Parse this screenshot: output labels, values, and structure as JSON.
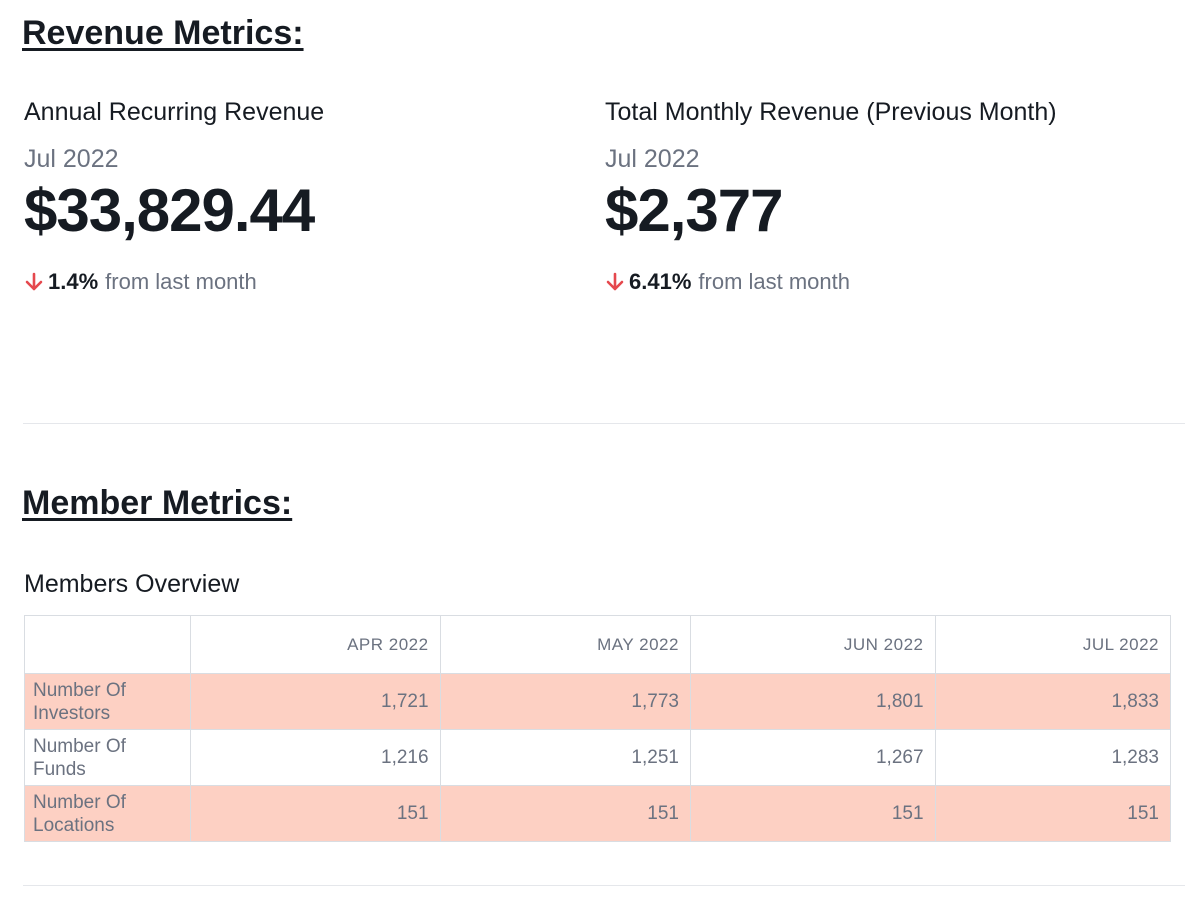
{
  "revenue": {
    "heading": "Revenue Metrics:",
    "metrics": [
      {
        "title": "Annual Recurring Revenue",
        "period": "Jul 2022",
        "value": "$33,829.44",
        "change": "1.4%",
        "change_suffix": "from last month",
        "direction": "down",
        "arrow_color": "#e5484d"
      },
      {
        "title": "Total Monthly Revenue (Previous Month)",
        "period": "Jul 2022",
        "value": "$2,377",
        "change": "6.41%",
        "change_suffix": "from last month",
        "direction": "down",
        "arrow_color": "#e5484d"
      }
    ]
  },
  "members": {
    "heading": "Member Metrics:",
    "table_title": "Members Overview",
    "columns": [
      "APR 2022",
      "MAY 2022",
      "JUN 2022",
      "JUL 2022"
    ],
    "rows": [
      {
        "label": "Number Of Investors",
        "values": [
          "1,721",
          "1,773",
          "1,801",
          "1,833"
        ],
        "highlighted": true
      },
      {
        "label": "Number Of Funds",
        "values": [
          "1,216",
          "1,251",
          "1,267",
          "1,283"
        ],
        "highlighted": false
      },
      {
        "label": "Number Of Locations",
        "values": [
          "151",
          "151",
          "151",
          "151"
        ],
        "highlighted": true
      }
    ],
    "highlight_color": "#fdd0c3"
  },
  "icons": {
    "change_arrow": "arrow-down-icon"
  }
}
